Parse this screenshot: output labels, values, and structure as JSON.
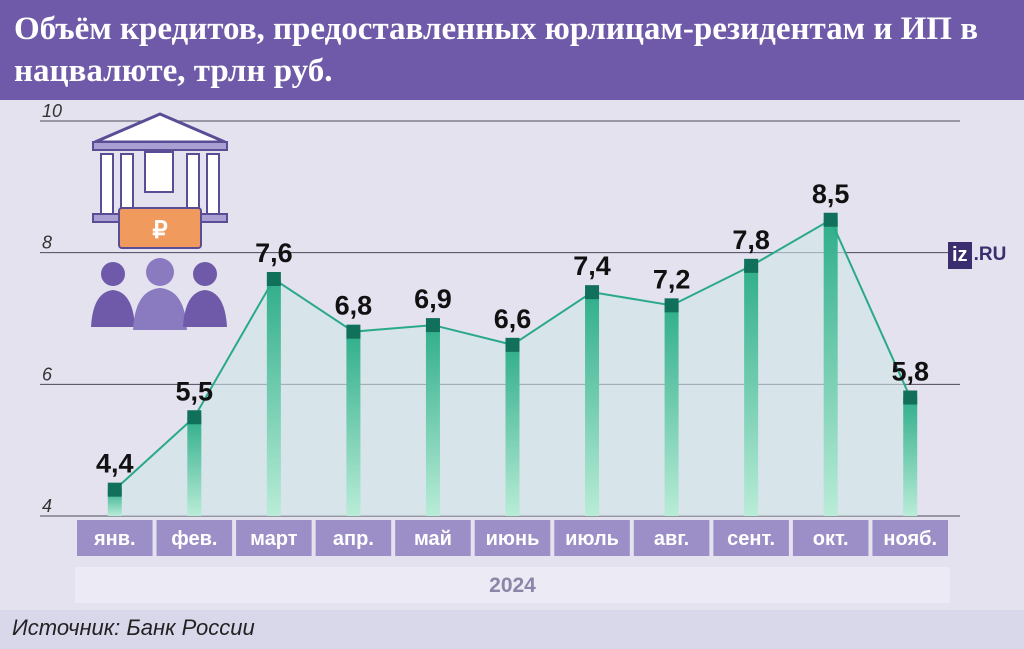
{
  "title": "Объём кредитов, предоставленных юрлицам-резидентам и ИП в нацвалюте, трлн руб.",
  "source": "Источник: Банк России",
  "logo": {
    "box": "iz",
    "suffix": ".RU"
  },
  "colors": {
    "header": "#6e5aa8",
    "month_box": "#9c8fc8",
    "year_band": "#eceaf5",
    "line": "#2aa98a",
    "marker": "#11705a",
    "bar_top": "#2fae8a",
    "bar_bottom": "#b9ecd7"
  },
  "chart_data": {
    "type": "line",
    "year": "2024",
    "categories": [
      "янв.",
      "фев.",
      "март",
      "апр.",
      "май",
      "июнь",
      "июль",
      "авг.",
      "сент.",
      "окт.",
      "нояб."
    ],
    "values": [
      4.4,
      5.5,
      7.6,
      6.8,
      6.9,
      6.6,
      7.4,
      7.2,
      7.8,
      8.5,
      5.8
    ],
    "labels": [
      "4,4",
      "5,5",
      "7,6",
      "6,8",
      "6,9",
      "6,6",
      "7,4",
      "7,2",
      "7,8",
      "8,5",
      "5,8"
    ],
    "y_ticks": [
      "4",
      "6",
      "8",
      "10"
    ],
    "ylim": [
      4,
      10
    ],
    "grid": true
  }
}
